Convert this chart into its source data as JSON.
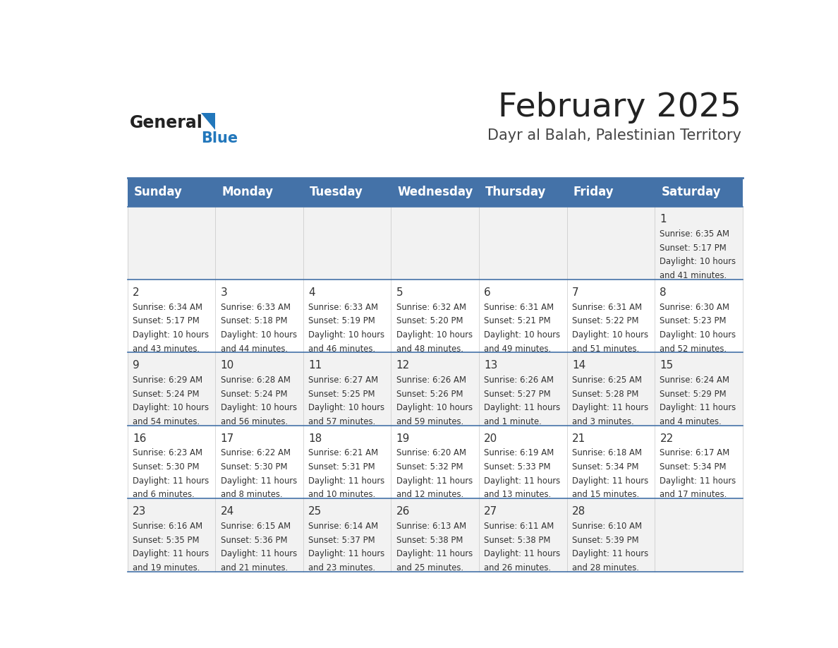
{
  "title": "February 2025",
  "subtitle": "Dayr al Balah, Palestinian Territory",
  "days_of_week": [
    "Sunday",
    "Monday",
    "Tuesday",
    "Wednesday",
    "Thursday",
    "Friday",
    "Saturday"
  ],
  "header_bg": "#4472a8",
  "header_text": "#ffffff",
  "row_bg_odd": "#f2f2f2",
  "row_bg_even": "#ffffff",
  "cell_text_color": "#333333",
  "day_num_color": "#333333",
  "border_color": "#4472a8",
  "logo_general_color": "#222222",
  "logo_blue_color": "#2277bb",
  "calendar_data": [
    [
      null,
      null,
      null,
      null,
      null,
      null,
      {
        "day": 1,
        "sunrise": "6:35 AM",
        "sunset": "5:17 PM",
        "daylight_line1": "Daylight: 10 hours",
        "daylight_line2": "and 41 minutes."
      }
    ],
    [
      {
        "day": 2,
        "sunrise": "6:34 AM",
        "sunset": "5:17 PM",
        "daylight_line1": "Daylight: 10 hours",
        "daylight_line2": "and 43 minutes."
      },
      {
        "day": 3,
        "sunrise": "6:33 AM",
        "sunset": "5:18 PM",
        "daylight_line1": "Daylight: 10 hours",
        "daylight_line2": "and 44 minutes."
      },
      {
        "day": 4,
        "sunrise": "6:33 AM",
        "sunset": "5:19 PM",
        "daylight_line1": "Daylight: 10 hours",
        "daylight_line2": "and 46 minutes."
      },
      {
        "day": 5,
        "sunrise": "6:32 AM",
        "sunset": "5:20 PM",
        "daylight_line1": "Daylight: 10 hours",
        "daylight_line2": "and 48 minutes."
      },
      {
        "day": 6,
        "sunrise": "6:31 AM",
        "sunset": "5:21 PM",
        "daylight_line1": "Daylight: 10 hours",
        "daylight_line2": "and 49 minutes."
      },
      {
        "day": 7,
        "sunrise": "6:31 AM",
        "sunset": "5:22 PM",
        "daylight_line1": "Daylight: 10 hours",
        "daylight_line2": "and 51 minutes."
      },
      {
        "day": 8,
        "sunrise": "6:30 AM",
        "sunset": "5:23 PM",
        "daylight_line1": "Daylight: 10 hours",
        "daylight_line2": "and 52 minutes."
      }
    ],
    [
      {
        "day": 9,
        "sunrise": "6:29 AM",
        "sunset": "5:24 PM",
        "daylight_line1": "Daylight: 10 hours",
        "daylight_line2": "and 54 minutes."
      },
      {
        "day": 10,
        "sunrise": "6:28 AM",
        "sunset": "5:24 PM",
        "daylight_line1": "Daylight: 10 hours",
        "daylight_line2": "and 56 minutes."
      },
      {
        "day": 11,
        "sunrise": "6:27 AM",
        "sunset": "5:25 PM",
        "daylight_line1": "Daylight: 10 hours",
        "daylight_line2": "and 57 minutes."
      },
      {
        "day": 12,
        "sunrise": "6:26 AM",
        "sunset": "5:26 PM",
        "daylight_line1": "Daylight: 10 hours",
        "daylight_line2": "and 59 minutes."
      },
      {
        "day": 13,
        "sunrise": "6:26 AM",
        "sunset": "5:27 PM",
        "daylight_line1": "Daylight: 11 hours",
        "daylight_line2": "and 1 minute."
      },
      {
        "day": 14,
        "sunrise": "6:25 AM",
        "sunset": "5:28 PM",
        "daylight_line1": "Daylight: 11 hours",
        "daylight_line2": "and 3 minutes."
      },
      {
        "day": 15,
        "sunrise": "6:24 AM",
        "sunset": "5:29 PM",
        "daylight_line1": "Daylight: 11 hours",
        "daylight_line2": "and 4 minutes."
      }
    ],
    [
      {
        "day": 16,
        "sunrise": "6:23 AM",
        "sunset": "5:30 PM",
        "daylight_line1": "Daylight: 11 hours",
        "daylight_line2": "and 6 minutes."
      },
      {
        "day": 17,
        "sunrise": "6:22 AM",
        "sunset": "5:30 PM",
        "daylight_line1": "Daylight: 11 hours",
        "daylight_line2": "and 8 minutes."
      },
      {
        "day": 18,
        "sunrise": "6:21 AM",
        "sunset": "5:31 PM",
        "daylight_line1": "Daylight: 11 hours",
        "daylight_line2": "and 10 minutes."
      },
      {
        "day": 19,
        "sunrise": "6:20 AM",
        "sunset": "5:32 PM",
        "daylight_line1": "Daylight: 11 hours",
        "daylight_line2": "and 12 minutes."
      },
      {
        "day": 20,
        "sunrise": "6:19 AM",
        "sunset": "5:33 PM",
        "daylight_line1": "Daylight: 11 hours",
        "daylight_line2": "and 13 minutes."
      },
      {
        "day": 21,
        "sunrise": "6:18 AM",
        "sunset": "5:34 PM",
        "daylight_line1": "Daylight: 11 hours",
        "daylight_line2": "and 15 minutes."
      },
      {
        "day": 22,
        "sunrise": "6:17 AM",
        "sunset": "5:34 PM",
        "daylight_line1": "Daylight: 11 hours",
        "daylight_line2": "and 17 minutes."
      }
    ],
    [
      {
        "day": 23,
        "sunrise": "6:16 AM",
        "sunset": "5:35 PM",
        "daylight_line1": "Daylight: 11 hours",
        "daylight_line2": "and 19 minutes."
      },
      {
        "day": 24,
        "sunrise": "6:15 AM",
        "sunset": "5:36 PM",
        "daylight_line1": "Daylight: 11 hours",
        "daylight_line2": "and 21 minutes."
      },
      {
        "day": 25,
        "sunrise": "6:14 AM",
        "sunset": "5:37 PM",
        "daylight_line1": "Daylight: 11 hours",
        "daylight_line2": "and 23 minutes."
      },
      {
        "day": 26,
        "sunrise": "6:13 AM",
        "sunset": "5:38 PM",
        "daylight_line1": "Daylight: 11 hours",
        "daylight_line2": "and 25 minutes."
      },
      {
        "day": 27,
        "sunrise": "6:11 AM",
        "sunset": "5:38 PM",
        "daylight_line1": "Daylight: 11 hours",
        "daylight_line2": "and 26 minutes."
      },
      {
        "day": 28,
        "sunrise": "6:10 AM",
        "sunset": "5:39 PM",
        "daylight_line1": "Daylight: 11 hours",
        "daylight_line2": "and 28 minutes."
      },
      null
    ]
  ]
}
